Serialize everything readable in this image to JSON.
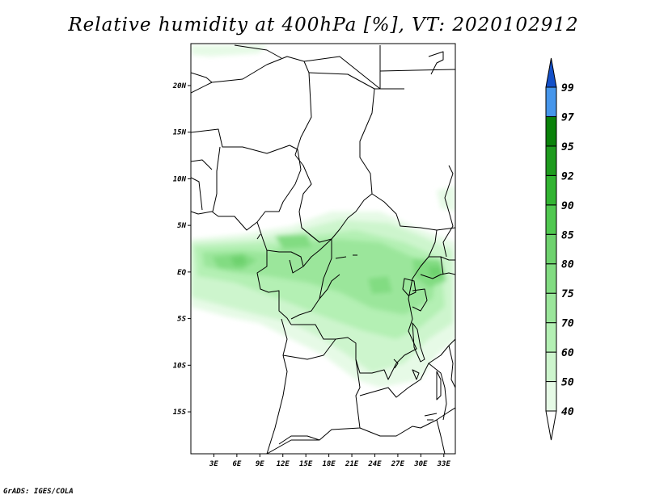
{
  "title": "Relative humidity at 400hPa [%], VT: 2020102912",
  "credit": "GrADS: IGES/COLA",
  "map": {
    "lat_ticks": [
      "20N",
      "15N",
      "10N",
      "5N",
      "EQ",
      "5S",
      "10S",
      "15S"
    ],
    "lon_ticks": [
      "3E",
      "6E",
      "9E",
      "12E",
      "15E",
      "18E",
      "21E",
      "24E",
      "27E",
      "30E",
      "33E"
    ],
    "lon_range": [
      0,
      34.5
    ],
    "lat_range": [
      -19.5,
      24.5
    ]
  },
  "colorbar": {
    "levels": [
      "40",
      "50",
      "60",
      "70",
      "75",
      "80",
      "85",
      "90",
      "92",
      "95",
      "97",
      "99"
    ],
    "colors": [
      "#e6fae6",
      "#cdf5cd",
      "#b4f0b4",
      "#9be69b",
      "#82dc82",
      "#6ed26e",
      "#50c850",
      "#32b432",
      "#1e9b1e",
      "#0a820a",
      "#4696eb",
      "#1e6ee1",
      "#1450c8"
    ]
  }
}
